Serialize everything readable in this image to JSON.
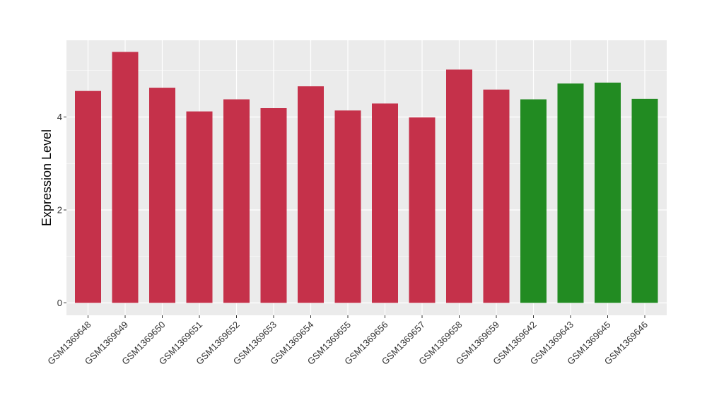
{
  "chart_data": {
    "type": "bar",
    "title": "",
    "xlabel": "",
    "ylabel": "Expression Level",
    "ylim": [
      -0.2,
      5.6
    ],
    "yticks": [
      0,
      2,
      4
    ],
    "grid": true,
    "legend": "none",
    "categories": [
      "GSM1369648",
      "GSM1369649",
      "GSM1369650",
      "GSM1369651",
      "GSM1369652",
      "GSM1369653",
      "GSM1369654",
      "GSM1369655",
      "GSM1369656",
      "GSM1369657",
      "GSM1369658",
      "GSM1369659",
      "GSM1369642",
      "GSM1369643",
      "GSM1369645",
      "GSM1369646"
    ],
    "values": [
      4.56,
      5.4,
      4.63,
      4.12,
      4.38,
      4.19,
      4.66,
      4.14,
      4.29,
      3.99,
      5.02,
      4.59,
      4.38,
      4.72,
      4.74,
      4.39
    ],
    "colors": [
      "#C5314A",
      "#C5314A",
      "#C5314A",
      "#C5314A",
      "#C5314A",
      "#C5314A",
      "#C5314A",
      "#C5314A",
      "#C5314A",
      "#C5314A",
      "#C5314A",
      "#C5314A",
      "#228B22",
      "#228B22",
      "#228B22",
      "#228B22"
    ],
    "panel_background": "#EBEBEB",
    "grid_color": "#FFFFFF"
  }
}
